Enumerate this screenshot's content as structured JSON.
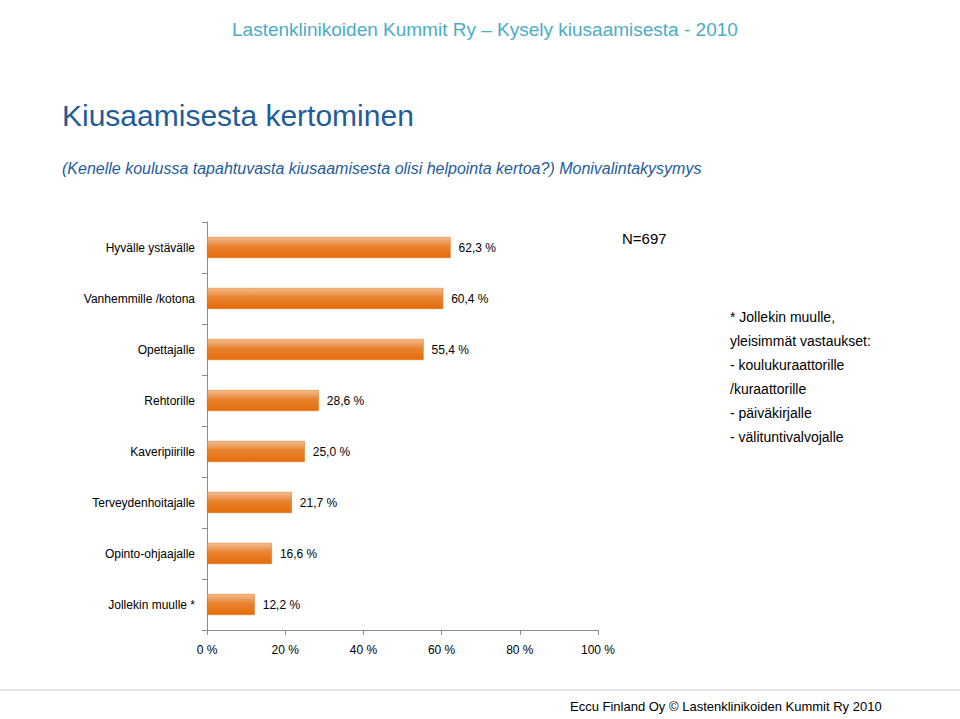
{
  "chart_data": {
    "type": "bar",
    "header": "Lastenklinikoiden Kummit Ry – Kysely kiusaamisesta - 2010",
    "title": "Kiusaamisesta kertominen",
    "subtitle": "(Kenelle koulussa tapahtuvasta kiusaamisesta olisi helpointa kertoa?) Monivalintakysymys",
    "annotations": [
      "N=697"
    ],
    "note_lines": [
      "* Jollekin muulle,",
      "yleisimmät vastaukset:",
      "- koulukuraattorille",
      "/kuraattorille",
      "- päiväkirjalle",
      "- välituntivalvojalle"
    ],
    "footer": "Eccu Finland Oy © Lastenklinikoiden Kummit Ry 2010",
    "orientation": "horizontal",
    "categories": [
      "Hyvälle ystävälle",
      "Vanhemmille /kotona",
      "Opettajalle",
      "Rehtorille",
      "Kaveripiirille",
      "Terveydenhoitajalle",
      "Opinto-ohjaajalle",
      "Jollekin muulle *"
    ],
    "values": [
      62.3,
      60.4,
      55.4,
      28.6,
      25.0,
      21.7,
      16.6,
      12.2
    ],
    "value_labels": [
      "62,3 %",
      "60,4 %",
      "55,4 %",
      "28,6 %",
      "25,0 %",
      "21,7 %",
      "16,6 %",
      "12,2 %"
    ],
    "data_labels": true,
    "color": "#e46c0a",
    "xlim": [
      0,
      100
    ],
    "xticks": [
      {
        "value": 0,
        "label": "0 %"
      },
      {
        "value": 20,
        "label": "20 %"
      },
      {
        "value": 40,
        "label": "40 %"
      },
      {
        "value": 60,
        "label": "60 %"
      },
      {
        "value": 80,
        "label": "80 %"
      },
      {
        "value": 100,
        "label": "100 %"
      }
    ],
    "grid": false
  }
}
